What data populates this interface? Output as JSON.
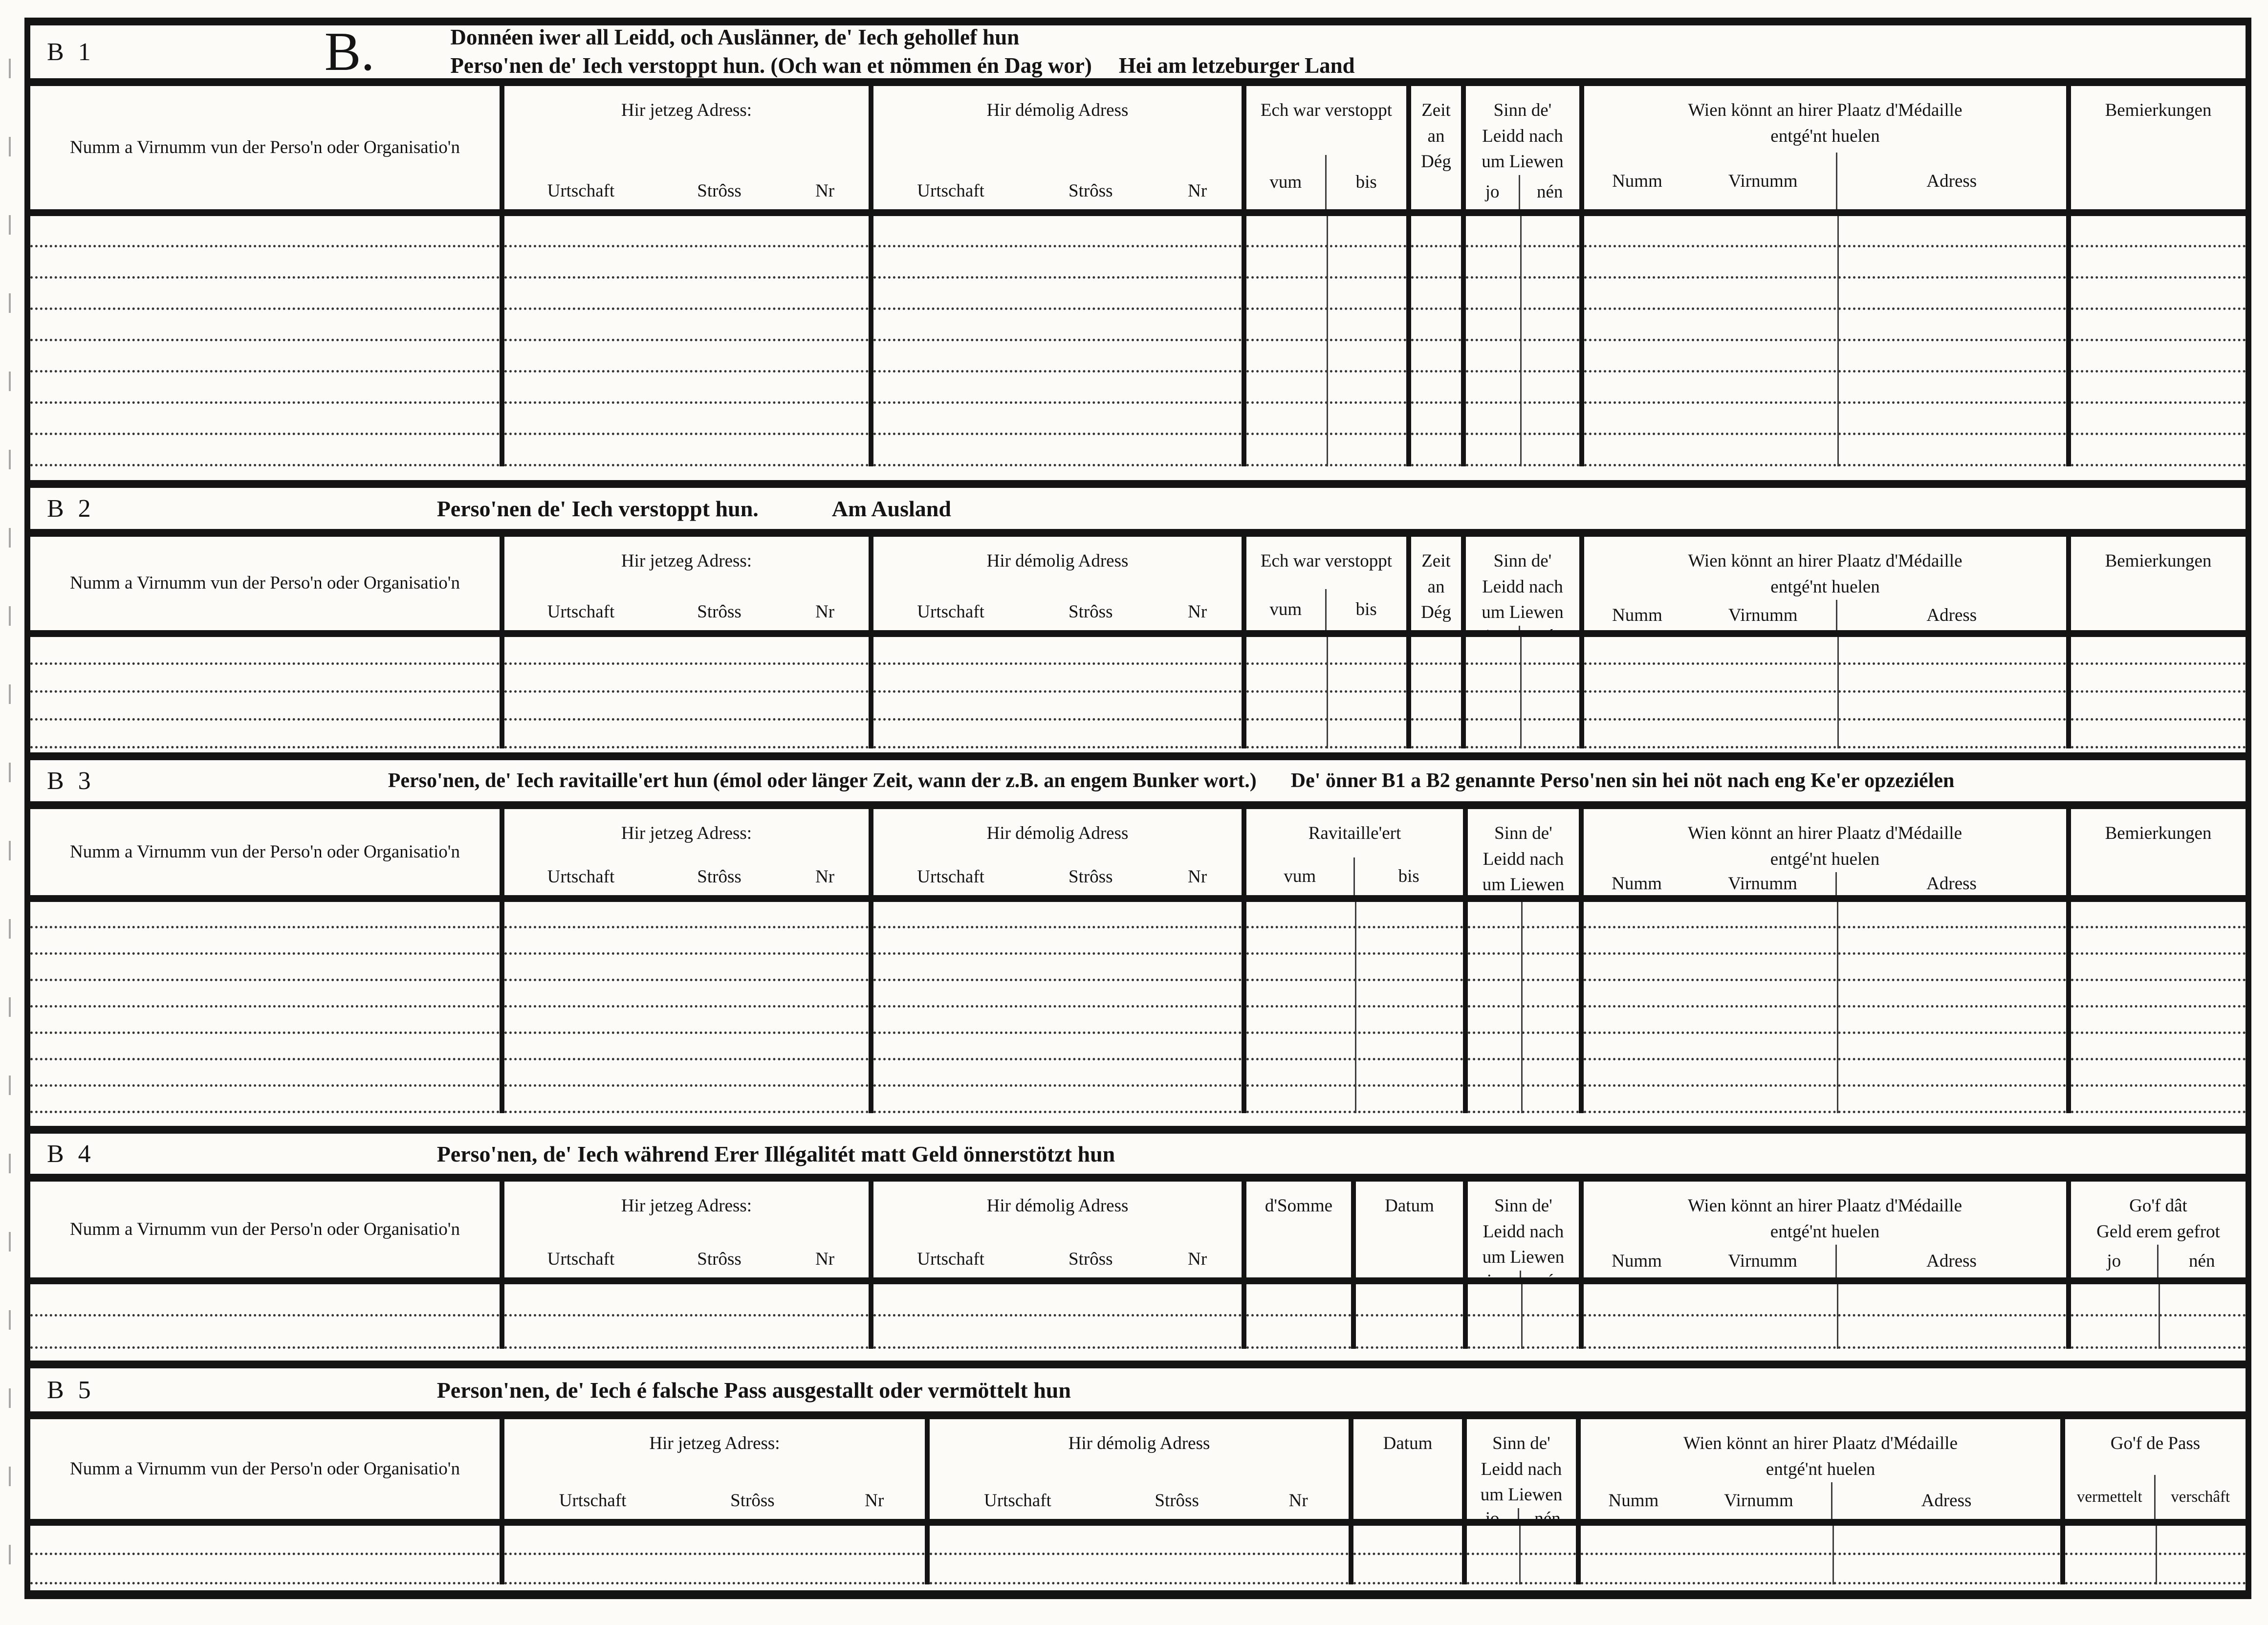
{
  "shared": {
    "name_col": "Numm a Virnumm vun der Perso'n oder Organisatio'n",
    "jetzeg_adress": "Hir jetzeg Adress:",
    "demolig_adress": "Hir démolig Adress",
    "urtschaft": "Urtschaft",
    "stross": "Strôss",
    "nr": "Nr",
    "verstoppt": "Ech war verstoppt",
    "vum": "vum",
    "bis": "bis",
    "zeit_l1": "Zeit",
    "zeit_l2": "an",
    "zeit_l3": "Dég",
    "sinn_l1": "Sinn de'",
    "sinn_l2": "Leidd nach",
    "sinn_l3": "um Liewen",
    "jo": "jo",
    "nen": "nén",
    "wien_l1": "Wien könnt an hirer Plaatz d'Médaille",
    "wien_l2": "entgé'nt huelen",
    "numm": "Numm",
    "virnumm": "Virnumm",
    "adress": "Adress",
    "bemierkungen": "Bemierkungen",
    "ravitailleert": "Ravitaille'ert",
    "dsomme": "d'Somme",
    "datum": "Datum"
  },
  "b1": {
    "id": "B 1",
    "big_letter": "B.",
    "line1": "Donnéen iwer all Leidd, och Auslänner, de' Iech gehollef hun",
    "line2": "Perso'nen de' Iech verstoppt hun. (Och wan et nömmen én Dag wor)",
    "line2_suffix": "Hei am letzeburger Land",
    "rows": 8
  },
  "b2": {
    "id": "B 2",
    "title": "Perso'nen de' Iech verstoppt hun.",
    "subtitle": "Am Ausland",
    "rows": 4
  },
  "b3": {
    "id": "B 3",
    "title_part1": "Perso'nen, de' Iech ravitaille'ert hun (émol oder länger Zeit, wann der z.B. an engem Bunker wort.)",
    "title_part2": "De' önner B1 a B2 genannte Perso'nen sin hei nöt nach eng Ke'er opzeziélen",
    "rows": 8
  },
  "b4": {
    "id": "B 4",
    "title": "Perso'nen, de' Iech während Erer Illégalitét matt Geld önnerstötzt hun",
    "gof_l1": "Go'f dât",
    "gof_l2": "Geld erem gefrot",
    "rows": 2
  },
  "b5": {
    "id": "B 5",
    "title": "Person'nen, de' Iech é falsche Pass ausgestallt oder vermöttelt hun",
    "gof_pass": "Go'f de Pass",
    "vermettelt": "vermettelt",
    "verschaft": "verschâft",
    "rows": 2
  }
}
